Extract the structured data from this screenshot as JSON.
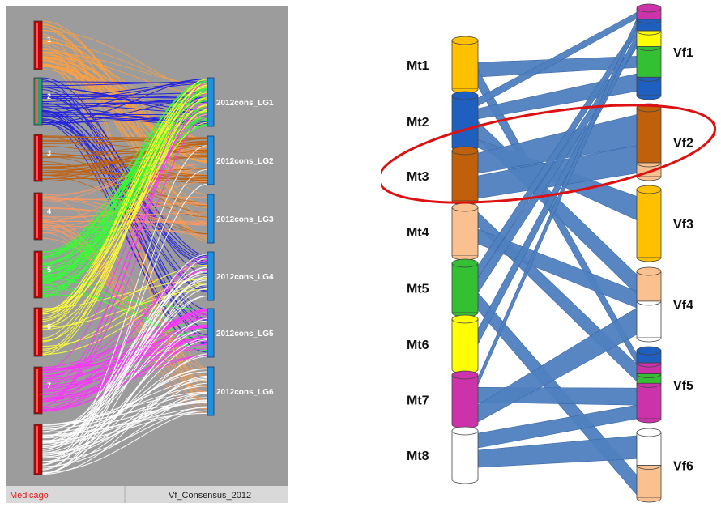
{
  "left": {
    "medicago_chromosomes": [
      {
        "label": "1",
        "color": "#c00000"
      },
      {
        "label": "2",
        "color": "#1fa37a"
      },
      {
        "label": "3",
        "color": "#c00000"
      },
      {
        "label": "4",
        "color": "#c00000"
      },
      {
        "label": "5",
        "color": "#c00000"
      },
      {
        "label": "6",
        "color": "#c00000"
      },
      {
        "label": "7",
        "color": "#c00000"
      },
      {
        "label": "",
        "color": "#c00000"
      }
    ],
    "consensus_groups": [
      {
        "label": "2012cons_LG1"
      },
      {
        "label": "2012cons_LG2"
      },
      {
        "label": "2012cons_LG3"
      },
      {
        "label": "2012cons_LG4"
      },
      {
        "label": "2012cons_LG5"
      },
      {
        "label": "2012cons_LG6"
      }
    ],
    "footer_left": "Medicago",
    "footer_right": "Vf_Consensus_2012",
    "colors": {
      "panel_bg": "#9c9c9c",
      "orange": "#ffa040",
      "blue": "#2020e0",
      "brown": "#c06010",
      "salmon": "#ff9960",
      "green": "#33ff33",
      "yellow": "#ffff33",
      "magenta": "#ff33ff",
      "white": "#ffffff",
      "target_blue": "#1f8fe0",
      "medicago_red": "#cc0000"
    }
  },
  "right": {
    "mt_labels": [
      "Mt1",
      "Mt2",
      "Mt3",
      "Mt4",
      "Mt5",
      "Mt6",
      "Mt7",
      "Mt8"
    ],
    "vf_labels": [
      "Vf1",
      "Vf2",
      "Vf3",
      "Vf4",
      "Vf5",
      "Vf6"
    ],
    "colors": {
      "ribbon": "#4f7fc0",
      "orange": "#ffc000",
      "blue": "#1f5fc0",
      "brown": "#c0600a",
      "peach": "#fac090",
      "green": "#33c033",
      "yellow": "#ffff00",
      "magenta": "#cc33aa",
      "white": "#ffffff",
      "highlight": "#dd1111"
    }
  }
}
